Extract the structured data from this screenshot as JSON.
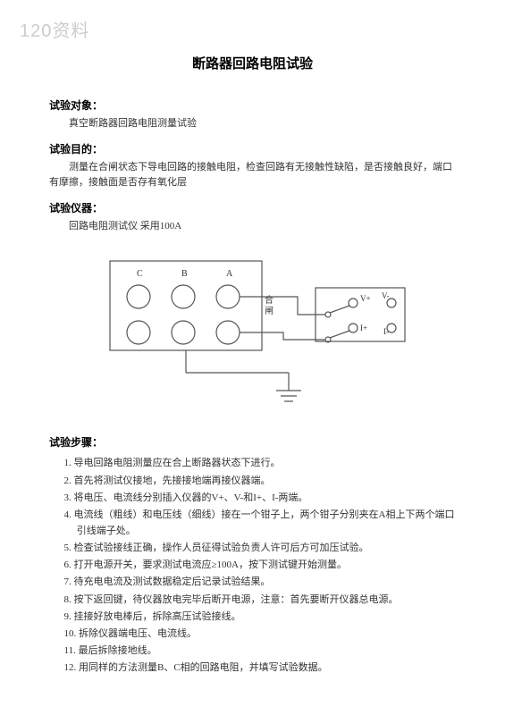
{
  "watermark": "120资料",
  "title": "断路器回路电阻试验",
  "sections": {
    "object": {
      "heading": "试验对象：",
      "body": "真空断路器回路电阻测量试验"
    },
    "purpose": {
      "heading": "试验目的：",
      "body": "测量在合闸状态下导电回路的接触电阻，检查回路有无接触性缺陷，是否接触良好，端口有摩擦，接触面是否存有氧化层"
    },
    "instrument": {
      "heading": "试验仪器：",
      "body": "回路电阻测试仪  采用100A"
    },
    "steps": {
      "heading": "试验步骤："
    }
  },
  "steps": [
    "导电回路电阻测量应在合上断路器状态下进行。",
    "首先将测试仪接地，先接接地端再接仪器端。",
    "将电压、电流线分别插入仪器的V+、V-和I+、I-两端。",
    "电流线（粗线）和电压线（细线）接在一个钳子上，两个钳子分别夹在A相上下两个端口引线端子处。",
    "检查试验接线正确，操作人员征得试验负责人许可后方可加压试验。",
    "打开电源开关，要求测试电流应≥100A，按下测试键开始测量。",
    "待充电电流及测试数据稳定后记录试验结果。",
    "按下返回键，待仪器放电完毕后断开电源，注意：首先要断开仪器总电源。",
    "挂接好放电棒后，拆除高压试验接线。",
    "拆除仪器端电压、电流线。",
    "最后拆除接地线。",
    "用同样的方法测量B、C相的回路电阻，并填写试验数据。"
  ],
  "diagram": {
    "labels": {
      "c": "C",
      "b": "B",
      "a": "A",
      "switch": "合闸",
      "vp": "V+",
      "vm": "V-",
      "ip": "I+",
      "im": "I-"
    },
    "colors": {
      "stroke": "#555555",
      "fill": "#ffffff",
      "text": "#333333"
    },
    "stroke_width": 1.2
  }
}
